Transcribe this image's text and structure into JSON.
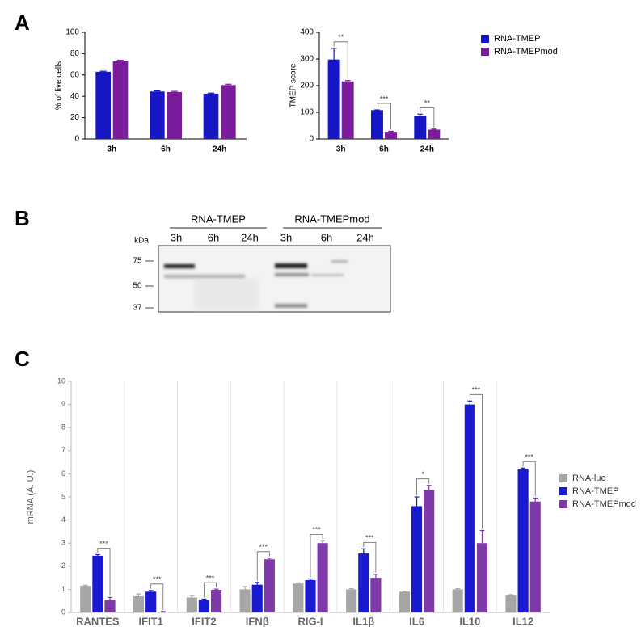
{
  "panel_labels": [
    "A",
    "B",
    "C"
  ],
  "chart_data": [
    {
      "type": "bar",
      "y_label": "% of live cells",
      "categories": [
        "3h",
        "6h",
        "24h"
      ],
      "series": [
        {
          "name": "RNA-TMEP",
          "color": "#1616c4",
          "values": [
            63,
            44.5,
            42.5
          ],
          "errors": [
            0.5,
            0.5,
            0.5
          ]
        },
        {
          "name": "RNA-TMEPmod",
          "color": "#7b1c9c",
          "values": [
            73,
            44,
            50.5
          ],
          "errors": [
            0.8,
            0.6,
            0.8
          ]
        }
      ],
      "ylim": [
        0,
        100
      ],
      "yticks": [
        0,
        20,
        40,
        60,
        80,
        100
      ]
    },
    {
      "type": "bar",
      "y_label": "TMEP score",
      "categories": [
        "3h",
        "6h",
        "24h"
      ],
      "series": [
        {
          "name": "RNA-TMEP",
          "color": "#1616c4",
          "values": [
            298,
            108,
            87
          ],
          "errors": [
            42,
            1,
            6
          ]
        },
        {
          "name": "RNA-TMEPmod",
          "color": "#7b1c9c",
          "values": [
            216,
            27,
            35
          ],
          "errors": [
            3,
            2,
            2
          ]
        }
      ],
      "ylim": [
        0,
        400
      ],
      "yticks": [
        0,
        100,
        200,
        300,
        400
      ],
      "legend": "right",
      "annotations": [
        {
          "category": "3h",
          "text": "**"
        },
        {
          "category": "6h",
          "text": "***"
        },
        {
          "category": "24h",
          "text": "**"
        }
      ]
    },
    {
      "type": "bar",
      "y_label": "mRNA (A. U.)",
      "categories": [
        "RANTES",
        "IFIT1",
        "IFIT2",
        "IFNβ",
        "RIG-I",
        "IL1β",
        "IL6",
        "IL10",
        "IL12"
      ],
      "series": [
        {
          "name": "RNA-luc",
          "color": "#a6a6a6",
          "values": [
            1.15,
            0.7,
            0.65,
            1.0,
            1.25,
            1.0,
            0.9,
            1.0,
            0.75
          ],
          "errors": [
            0.03,
            0.1,
            0.08,
            0.12,
            0.03,
            0.03,
            0.02,
            0.03,
            0.02
          ]
        },
        {
          "name": "RNA-TMEP",
          "color": "#1a1ad0",
          "values": [
            2.45,
            0.9,
            0.55,
            1.2,
            1.4,
            2.55,
            4.6,
            9.0,
            6.2
          ],
          "errors": [
            0.05,
            0.05,
            0.03,
            0.1,
            0.05,
            0.2,
            0.4,
            0.15,
            0.05
          ]
        },
        {
          "name": "RNA-TMEPmod",
          "color": "#7e3aa8",
          "values": [
            0.55,
            0.02,
            0.98,
            2.3,
            3.0,
            1.5,
            5.3,
            3.0,
            4.8
          ],
          "errors": [
            0.1,
            0.02,
            0.03,
            0.05,
            0.1,
            0.15,
            0.2,
            0.55,
            0.15
          ]
        }
      ],
      "ylim": [
        0,
        10
      ],
      "yticks": [
        0,
        1,
        2,
        3,
        4,
        5,
        6,
        7,
        8,
        9,
        10
      ],
      "legend": "right",
      "category_separators": true,
      "annotations": [
        {
          "category": "RANTES",
          "text": "***"
        },
        {
          "category": "IFIT1",
          "text": "***"
        },
        {
          "category": "IFIT2",
          "text": "***"
        },
        {
          "category": "IFNβ",
          "text": "***"
        },
        {
          "category": "RIG-I",
          "text": "***"
        },
        {
          "category": "IL1β",
          "text": "***"
        },
        {
          "category": "IL6",
          "text": "*"
        },
        {
          "category": "IL10",
          "text": "***"
        },
        {
          "category": "IL12",
          "text": "***"
        }
      ]
    }
  ],
  "blot": {
    "groups": [
      "RNA-TMEP",
      "RNA-TMEPmod"
    ],
    "lanes": [
      "3h",
      "6h",
      "24h",
      "3h",
      "6h",
      "24h"
    ],
    "unit": "kDa",
    "markers": [
      "75",
      "50",
      "37"
    ]
  }
}
